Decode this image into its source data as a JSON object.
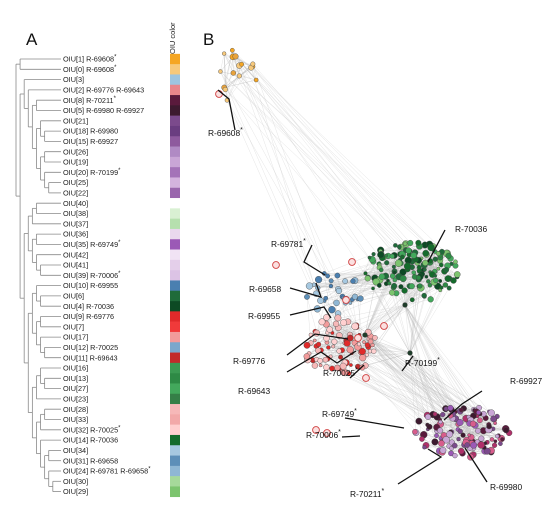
{
  "panels": {
    "a": "A",
    "b": "B"
  },
  "colorbar": {
    "title": "OIU color"
  },
  "leaves": [
    {
      "label": "OIU[1] R-69608",
      "star": "*",
      "color": "#f5a623"
    },
    {
      "label": "OIU[0] R-69608",
      "star": "*",
      "color": "#f7c97b"
    },
    {
      "label": "OIU[3]",
      "star": "",
      "color": "#9ec5e0"
    },
    {
      "label": "OIU[2] R-69776 R-69643",
      "star": "",
      "color": "#e8868b"
    },
    {
      "label": "OIU[8] R-70211",
      "star": "*",
      "color": "#5a1a3c"
    },
    {
      "label": "OIU[5] R-69980 R-69927",
      "star": "",
      "color": "#3d1a2f"
    },
    {
      "label": "OIU[21]",
      "star": "",
      "color": "#7b4a8c"
    },
    {
      "label": "OIU[18] R-69980",
      "star": "",
      "color": "#6a3d80"
    },
    {
      "label": "OIU[15] R-69927",
      "star": "",
      "color": "#8e5a9e"
    },
    {
      "label": "OIU[26]",
      "star": "",
      "color": "#b08ac4"
    },
    {
      "label": "OIU[19]",
      "star": "",
      "color": "#c9a6d6"
    },
    {
      "label": "OIU[20] R-70199",
      "star": "*",
      "color": "#a473b8"
    },
    {
      "label": "OIU[25]",
      "star": "",
      "color": "#d4b3de"
    },
    {
      "label": "OIU[22]",
      "star": "",
      "color": "#9a66ad"
    },
    {
      "label": "OIU[40]",
      "star": "",
      "color": "#ffffff"
    },
    {
      "label": "OIU[38]",
      "star": "",
      "color": "#d9f0d3"
    },
    {
      "label": "OIU[37]",
      "star": "",
      "color": "#b6e0ae"
    },
    {
      "label": "OIU[36]",
      "star": "",
      "color": "#ead8ee"
    },
    {
      "label": "OIU[35] R-69749",
      "star": "*",
      "color": "#9b59b6"
    },
    {
      "label": "OIU[42]",
      "star": "",
      "color": "#f1e3f4"
    },
    {
      "label": "OIU[41]",
      "star": "",
      "color": "#e4cfea"
    },
    {
      "label": "OIU[39] R-70006",
      "star": "*",
      "color": "#dcc3e5"
    },
    {
      "label": "OIU[10] R-69955",
      "star": "",
      "color": "#4a7fb0"
    },
    {
      "label": "OIU[6]",
      "star": "",
      "color": "#1f6b3a"
    },
    {
      "label": "OIU[4] R-70036",
      "star": "",
      "color": "#0d4a24"
    },
    {
      "label": "OIU[9] R-69776",
      "star": "",
      "color": "#e02a2a"
    },
    {
      "label": "OIU[7]",
      "star": "",
      "color": "#f03a3a"
    },
    {
      "label": "OIU[17]",
      "star": "",
      "color": "#f29b9b"
    },
    {
      "label": "OIU[12] R-70025",
      "star": "",
      "color": "#7ba7cc"
    },
    {
      "label": "OIU[11] R-69643",
      "star": "",
      "color": "#c22a2a"
    },
    {
      "label": "OIU[16]",
      "star": "",
      "color": "#3b9a52"
    },
    {
      "label": "OIU[13]",
      "star": "",
      "color": "#2e8a45"
    },
    {
      "label": "OIU[27]",
      "star": "",
      "color": "#43a85c"
    },
    {
      "label": "OIU[23]",
      "star": "",
      "color": "#357f47"
    },
    {
      "label": "OIU[28]",
      "star": "",
      "color": "#f6b8b8"
    },
    {
      "label": "OIU[33]",
      "star": "",
      "color": "#f2a9a9"
    },
    {
      "label": "OIU[32] R-70025",
      "star": "*",
      "color": "#ffd0d0"
    },
    {
      "label": "OIU[14] R-70036",
      "star": "",
      "color": "#156b2c"
    },
    {
      "label": "OIU[34]",
      "star": "",
      "color": "#a6c8e0"
    },
    {
      "label": "OIU[31] R-69658",
      "star": "",
      "color": "#5d8fb8"
    },
    {
      "label": "OIU[24] R-69781 R-69658",
      "star": "*",
      "color": "#8fb7d4"
    },
    {
      "label": "OIU[30]",
      "star": "",
      "color": "#a6d99a"
    },
    {
      "label": "OIU[29]",
      "star": "",
      "color": "#7cc46e"
    }
  ],
  "network_labels": [
    {
      "text": "R-69608",
      "star": "*"
    },
    {
      "text": "R-70036",
      "star": ""
    },
    {
      "text": "R-69781",
      "star": "*"
    },
    {
      "text": "R-69658",
      "star": ""
    },
    {
      "text": "R-69955",
      "star": ""
    },
    {
      "text": "R-69776",
      "star": ""
    },
    {
      "text": "R-69643",
      "star": ""
    },
    {
      "text": "R-70025",
      "star": "*"
    },
    {
      "text": "R-70199",
      "star": "*"
    },
    {
      "text": "R-69927",
      "star": ""
    },
    {
      "text": "R-69749",
      "star": "*"
    },
    {
      "text": "R-70006",
      "star": "*"
    },
    {
      "text": "R-69980",
      "star": ""
    },
    {
      "text": "R-70211",
      "star": "*"
    }
  ],
  "cluster_colors": {
    "orange": [
      "#f5a623",
      "#f7c97b",
      "#e8a33d"
    ],
    "green": [
      "#0d4a24",
      "#1f6b3a",
      "#2e8a45",
      "#43a85c",
      "#156b2c",
      "#7cc46e"
    ],
    "red": [
      "#e02a2a",
      "#c22a2a",
      "#f29b9b",
      "#f6b8b8",
      "#ffd0d0"
    ],
    "blue": [
      "#4a7fb0",
      "#5d8fb8",
      "#8fb7d4",
      "#a6c8e0"
    ],
    "purple": [
      "#3d1a2f",
      "#5a1a3c",
      "#7b4a8c",
      "#9b59b6",
      "#c9a6d6",
      "#b0306a",
      "#d85c8c"
    ]
  }
}
